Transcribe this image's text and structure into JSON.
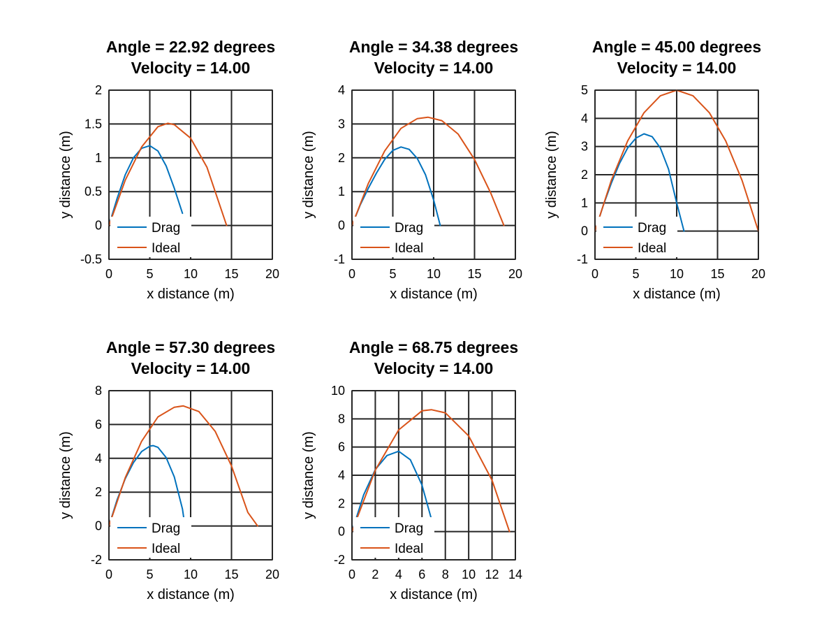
{
  "figure": {
    "background": "#ffffff"
  },
  "colors": {
    "drag": "#0072BD",
    "ideal": "#D95319",
    "grid": "#262626",
    "axes": "#262626"
  },
  "chart_data": [
    {
      "type": "line",
      "title": [
        "Angle = 22.92 degrees",
        "Velocity = 14.00"
      ],
      "xlabel": "x distance (m)",
      "ylabel": "y distance (m)",
      "xlim": [
        0,
        20
      ],
      "ylim": [
        -0.5,
        2
      ],
      "xticks": [
        0,
        5,
        10,
        15,
        20
      ],
      "xtick_labels": [
        "0",
        "5",
        "10",
        "15",
        "20"
      ],
      "yticks": [
        -0.5,
        0,
        0.5,
        1,
        1.5,
        2
      ],
      "ytick_labels": [
        "-0.5",
        "0",
        "0.5",
        "1",
        "1.5",
        "2"
      ],
      "grid": true,
      "legend": {
        "location": "bottom-left",
        "entries": [
          "Drag",
          "Ideal"
        ]
      },
      "series": [
        {
          "name": "Drag",
          "x": [
            0,
            1,
            2,
            3,
            4,
            5,
            6,
            7,
            8,
            9
          ],
          "y": [
            0,
            0.4,
            0.75,
            1.0,
            1.14,
            1.18,
            1.1,
            0.88,
            0.55,
            0.18
          ]
        },
        {
          "name": "Ideal",
          "x": [
            0,
            2,
            4,
            6,
            7.2,
            8,
            10,
            12,
            14.4
          ],
          "y": [
            0,
            0.67,
            1.16,
            1.46,
            1.51,
            1.49,
            1.29,
            0.86,
            0
          ]
        }
      ]
    },
    {
      "type": "line",
      "title": [
        "Angle = 34.38 degrees",
        "Velocity = 14.00"
      ],
      "xlabel": "x distance (m)",
      "ylabel": "y distance (m)",
      "xlim": [
        0,
        20
      ],
      "ylim": [
        -1,
        4
      ],
      "xticks": [
        0,
        5,
        10,
        15,
        20
      ],
      "xtick_labels": [
        "0",
        "5",
        "10",
        "15",
        "20"
      ],
      "yticks": [
        -1,
        0,
        1,
        2,
        3,
        4
      ],
      "ytick_labels": [
        "-1",
        "0",
        "1",
        "2",
        "3",
        "4"
      ],
      "grid": true,
      "legend": {
        "location": "bottom-left",
        "entries": [
          "Drag",
          "Ideal"
        ]
      },
      "series": [
        {
          "name": "Drag",
          "x": [
            0,
            1,
            2,
            3,
            4,
            5,
            6,
            7,
            8,
            9,
            10,
            10.8
          ],
          "y": [
            0,
            0.6,
            1.1,
            1.55,
            1.95,
            2.22,
            2.32,
            2.25,
            1.98,
            1.5,
            0.75,
            0
          ]
        },
        {
          "name": "Ideal",
          "x": [
            0,
            2,
            4,
            6,
            8,
            9.3,
            11,
            13,
            15,
            17,
            18.6
          ],
          "y": [
            0,
            1.24,
            2.2,
            2.87,
            3.16,
            3.2,
            3.1,
            2.7,
            1.95,
            0.95,
            0
          ]
        }
      ]
    },
    {
      "type": "line",
      "title": [
        "Angle = 45.00 degrees",
        "Velocity = 14.00"
      ],
      "xlabel": "x distance (m)",
      "ylabel": "y distance (m)",
      "xlim": [
        0,
        20
      ],
      "ylim": [
        -1,
        5
      ],
      "xticks": [
        0,
        5,
        10,
        15,
        20
      ],
      "xtick_labels": [
        "0",
        "5",
        "10",
        "15",
        "20"
      ],
      "yticks": [
        -1,
        0,
        1,
        2,
        3,
        4,
        5
      ],
      "ytick_labels": [
        "-1",
        "0",
        "1",
        "2",
        "3",
        "4",
        "5"
      ],
      "grid": true,
      "legend": {
        "location": "bottom-left",
        "entries": [
          "Drag",
          "Ideal"
        ]
      },
      "series": [
        {
          "name": "Drag",
          "x": [
            0,
            1,
            2,
            3,
            4,
            5,
            6,
            7,
            8,
            9,
            10,
            10.9
          ],
          "y": [
            0,
            0.9,
            1.7,
            2.4,
            2.95,
            3.3,
            3.45,
            3.35,
            2.95,
            2.2,
            1.0,
            0
          ]
        },
        {
          "name": "Ideal",
          "x": [
            0,
            2,
            4,
            6,
            8,
            10,
            12,
            14,
            16,
            18,
            20
          ],
          "y": [
            0,
            1.8,
            3.2,
            4.2,
            4.8,
            5.0,
            4.8,
            4.2,
            3.2,
            1.8,
            0
          ]
        }
      ]
    },
    {
      "type": "line",
      "title": [
        "Angle = 57.30 degrees",
        "Velocity = 14.00"
      ],
      "xlabel": "x distance (m)",
      "ylabel": "y distance (m)",
      "xlim": [
        0,
        20
      ],
      "ylim": [
        -2,
        8
      ],
      "xticks": [
        0,
        5,
        10,
        15,
        20
      ],
      "xtick_labels": [
        "0",
        "5",
        "10",
        "15",
        "20"
      ],
      "yticks": [
        -2,
        0,
        2,
        4,
        6,
        8
      ],
      "ytick_labels": [
        "-2",
        "0",
        "2",
        "4",
        "6",
        "8"
      ],
      "grid": true,
      "legend": {
        "location": "bottom-left",
        "entries": [
          "Drag",
          "Ideal"
        ]
      },
      "series": [
        {
          "name": "Drag",
          "x": [
            0,
            1,
            2,
            3,
            4,
            5,
            5.4,
            6,
            7,
            8,
            9,
            9.3
          ],
          "y": [
            0,
            1.55,
            2.8,
            3.75,
            4.4,
            4.72,
            4.75,
            4.65,
            4.05,
            2.9,
            1.0,
            0
          ]
        },
        {
          "name": "Ideal",
          "x": [
            0,
            2,
            4,
            6,
            8,
            9.1,
            11,
            13,
            15,
            17,
            18.2
          ],
          "y": [
            0,
            2.86,
            5.01,
            6.45,
            7.02,
            7.1,
            6.77,
            5.6,
            3.55,
            0.8,
            0
          ]
        }
      ]
    },
    {
      "type": "line",
      "title": [
        "Angle = 68.75 degrees",
        "Velocity = 14.00"
      ],
      "xlabel": "x distance (m)",
      "ylabel": "y distance (m)",
      "xlim": [
        0,
        14
      ],
      "ylim": [
        -2,
        10
      ],
      "xticks": [
        0,
        2,
        4,
        6,
        8,
        10,
        12,
        14
      ],
      "xtick_labels": [
        "0",
        "2",
        "4",
        "6",
        "8",
        "10",
        "12",
        "14"
      ],
      "yticks": [
        -2,
        0,
        2,
        4,
        6,
        8,
        10
      ],
      "ytick_labels": [
        "-2",
        "0",
        "2",
        "4",
        "6",
        "8",
        "10"
      ],
      "grid": true,
      "legend": {
        "location": "bottom-left",
        "entries": [
          "Drag",
          "Ideal"
        ]
      },
      "series": [
        {
          "name": "Drag",
          "x": [
            0,
            1,
            2,
            3,
            4,
            5,
            6,
            6.8
          ],
          "y": [
            0,
            2.6,
            4.4,
            5.4,
            5.7,
            5.1,
            3.3,
            0.9
          ]
        },
        {
          "name": "Ideal",
          "x": [
            0,
            2,
            4,
            6,
            6.8,
            8,
            10,
            12,
            13.5
          ],
          "y": [
            0,
            4.36,
            7.22,
            8.57,
            8.65,
            8.43,
            6.79,
            3.65,
            0
          ]
        }
      ]
    }
  ]
}
